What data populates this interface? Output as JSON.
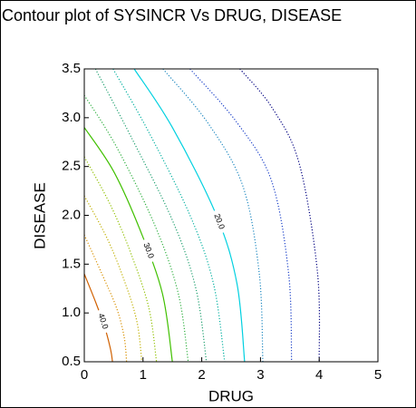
{
  "chart_data": {
    "type": "contour",
    "title": "Contour plot of SYSINCR Vs DRUG, DISEASE",
    "x_label": "DRUG",
    "y_label": "DISEASE",
    "xlim": [
      0,
      5
    ],
    "xticks": [
      0,
      1,
      2,
      3,
      4,
      5
    ],
    "ylim": [
      0.5,
      3.5
    ],
    "yticks": [
      0.5,
      {
        "value": 1,
        "label": "1.0"
      },
      1.5,
      {
        "value": 2,
        "label": "2.0"
      },
      2.5,
      {
        "value": 3,
        "label": "3.0"
      },
      3.5
    ],
    "contours": [
      {
        "level": 12.5,
        "color": "#000080",
        "style": "dotted",
        "x": [
          2.65,
          3.2,
          3.66,
          3.97,
          4.0
        ],
        "y": [
          3.5,
          3.1,
          2.53,
          1.42,
          0.5
        ]
      },
      {
        "level": 15,
        "color": "#1a3fc8",
        "style": "dotted",
        "x": [
          1.8,
          2.6,
          3.19,
          3.48,
          3.53
        ],
        "y": [
          3.5,
          2.95,
          2.35,
          1.4,
          0.5
        ]
      },
      {
        "level": 17.5,
        "color": "#1e88c0",
        "style": "dotted",
        "x": [
          1.34,
          2.1,
          2.7,
          2.98,
          3.04
        ],
        "y": [
          3.5,
          2.95,
          2.3,
          1.4,
          0.5
        ]
      },
      {
        "level": 20,
        "label": "20.0",
        "color": "#00d0e0",
        "style": "solid",
        "x": [
          0.85,
          1.5,
          2.25,
          2.6,
          2.73
        ],
        "y": [
          3.5,
          2.9,
          2.0,
          1.3,
          0.5
        ]
      },
      {
        "level": 22.5,
        "color": "#00b0a0",
        "style": "dotted",
        "x": [
          0.49,
          1.1,
          1.8,
          2.2,
          2.39
        ],
        "y": [
          3.5,
          2.85,
          2.0,
          1.3,
          0.5
        ]
      },
      {
        "level": 25,
        "color": "#20a070",
        "style": "dotted",
        "x": [
          0.19,
          0.8,
          1.5,
          1.9,
          2.08
        ],
        "y": [
          3.5,
          2.8,
          1.95,
          1.25,
          0.5
        ]
      },
      {
        "level": 27.5,
        "color": "#30b040",
        "style": "dotted",
        "x": [
          0,
          0.55,
          1.2,
          1.6,
          1.77
        ],
        "y": [
          3.23,
          2.7,
          1.9,
          1.2,
          0.5
        ]
      },
      {
        "level": 30,
        "label": "30.0",
        "color": "#40c000",
        "style": "solid",
        "x": [
          0,
          0.5,
          0.95,
          1.33,
          1.5
        ],
        "y": [
          2.9,
          2.45,
          1.85,
          1.2,
          0.5
        ]
      },
      {
        "level": 32.5,
        "color": "#90c000",
        "style": "dotted",
        "x": [
          0,
          0.45,
          0.8,
          1.1,
          1.23
        ],
        "y": [
          2.6,
          2.1,
          1.6,
          1.05,
          0.5
        ]
      },
      {
        "level": 35,
        "color": "#c0b000",
        "style": "dotted",
        "x": [
          0,
          0.4,
          0.7,
          0.9,
          0.98
        ],
        "y": [
          2.2,
          1.75,
          1.3,
          0.9,
          0.5
        ]
      },
      {
        "level": 37.5,
        "color": "#d89000",
        "style": "dotted",
        "x": [
          0,
          0.3,
          0.55,
          0.68,
          0.72
        ],
        "y": [
          1.8,
          1.4,
          1.05,
          0.75,
          0.5
        ]
      },
      {
        "level": 40,
        "label": "40.0",
        "color": "#d06000",
        "style": "solid",
        "x": [
          0,
          0.2,
          0.35,
          0.45,
          0.48
        ],
        "y": [
          1.4,
          1.1,
          0.85,
          0.62,
          0.5
        ]
      }
    ]
  }
}
